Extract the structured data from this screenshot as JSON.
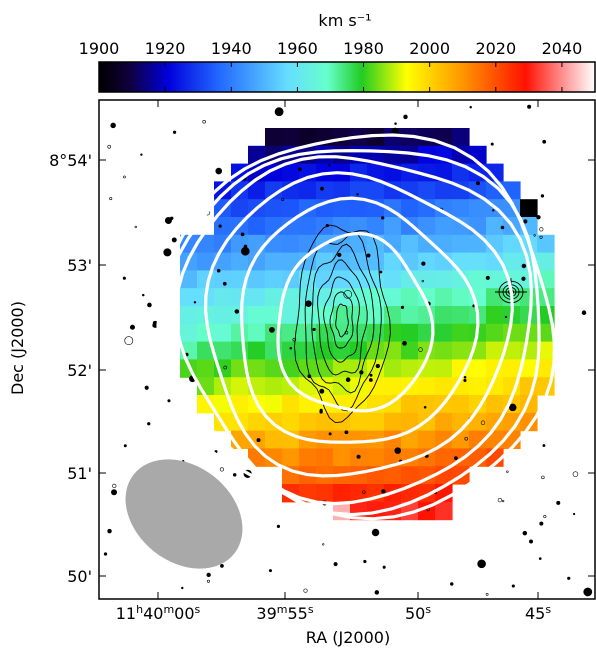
{
  "chart_data": {
    "type": "heatmap",
    "title": "",
    "colorbar": {
      "label": "km s⁻¹",
      "range": [
        1900,
        2050
      ],
      "ticks": [
        1900,
        1920,
        1940,
        1960,
        1980,
        2000,
        2020,
        2040
      ],
      "tick_labels": [
        "1900",
        "1920",
        "1940",
        "1960",
        "1980",
        "2000",
        "2020",
        "2040"
      ],
      "colormap": "spectral (black-blue-cyan-green-yellow-orange-red-white)"
    },
    "xlabel": "RA (J2000)",
    "ylabel": "Dec (J2000)",
    "x_ticks": [
      "11h40m00s",
      "39m55s",
      "50s",
      "45s"
    ],
    "x_tick_parts": [
      {
        "h": "11",
        "hs": "h",
        "m": "40",
        "ms": "m",
        "s": "00",
        "ss": "s"
      },
      {
        "h": "",
        "hs": "",
        "m": "39",
        "ms": "m",
        "s": "55",
        "ss": "s"
      },
      {
        "h": "",
        "hs": "",
        "m": "",
        "ms": "",
        "s": "50",
        "ss": "s"
      },
      {
        "h": "",
        "hs": "",
        "m": "",
        "ms": "",
        "s": "45",
        "ss": "s"
      }
    ],
    "y_ticks": [
      "8°54'",
      "53'",
      "52'",
      "51'",
      "50'"
    ],
    "velocity_gradient": {
      "north_rows_kms": 1910,
      "south_rows_kms": 2030,
      "axis": "north-south"
    },
    "overlays": {
      "hi_contours": "white",
      "optical_contours": "black",
      "beam": "grey ellipse, lower-left"
    }
  }
}
